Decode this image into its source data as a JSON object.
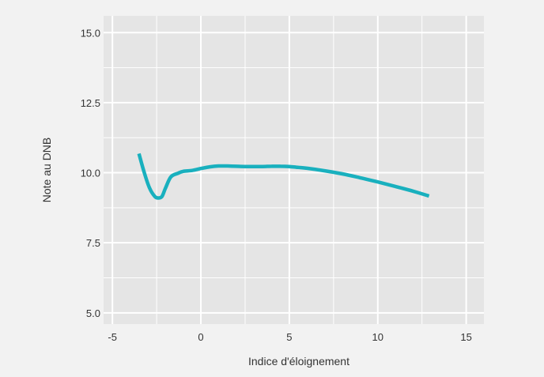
{
  "chart_data": {
    "type": "line",
    "title": "",
    "xlabel": "Indice d'éloignement",
    "ylabel": "Note au DNB",
    "xlim": [
      -5.5,
      16
    ],
    "ylim": [
      4.6,
      15.6
    ],
    "x_ticks": [
      -5,
      0,
      5,
      10,
      15
    ],
    "x_tick_labels": [
      "-5",
      "0",
      "5",
      "10",
      "15"
    ],
    "y_ticks": [
      5.0,
      7.5,
      10.0,
      12.5,
      15.0
    ],
    "y_tick_labels": [
      "5.0",
      "7.5",
      "10.0",
      "12.5",
      "15.0"
    ],
    "grid": true,
    "legend": "none",
    "series": [
      {
        "x": [
          -3.5,
          -3.2,
          -2.9,
          -2.6,
          -2.4,
          -2.2,
          -2.0,
          -1.7,
          -1.3,
          -1.0,
          -0.5,
          0.0,
          0.5,
          1.0,
          1.5,
          2.0,
          2.5,
          3.0,
          3.5,
          4.0,
          4.5,
          5.0,
          5.5,
          6.0,
          7.0,
          8.0,
          9.0,
          10.0,
          11.0,
          12.0,
          12.9
        ],
        "y": [
          10.68,
          10.0,
          9.45,
          9.15,
          9.1,
          9.15,
          9.45,
          9.85,
          9.98,
          10.05,
          10.08,
          10.15,
          10.21,
          10.24,
          10.24,
          10.23,
          10.22,
          10.22,
          10.22,
          10.23,
          10.23,
          10.22,
          10.19,
          10.16,
          10.07,
          9.96,
          9.82,
          9.67,
          9.51,
          9.34,
          9.17
        ]
      }
    ]
  },
  "colors": {
    "page_background": "#f2f2f2",
    "panel_background": "#e5e5e5",
    "grid": "#ffffff",
    "line": "#19b0be",
    "text": "#333333"
  }
}
